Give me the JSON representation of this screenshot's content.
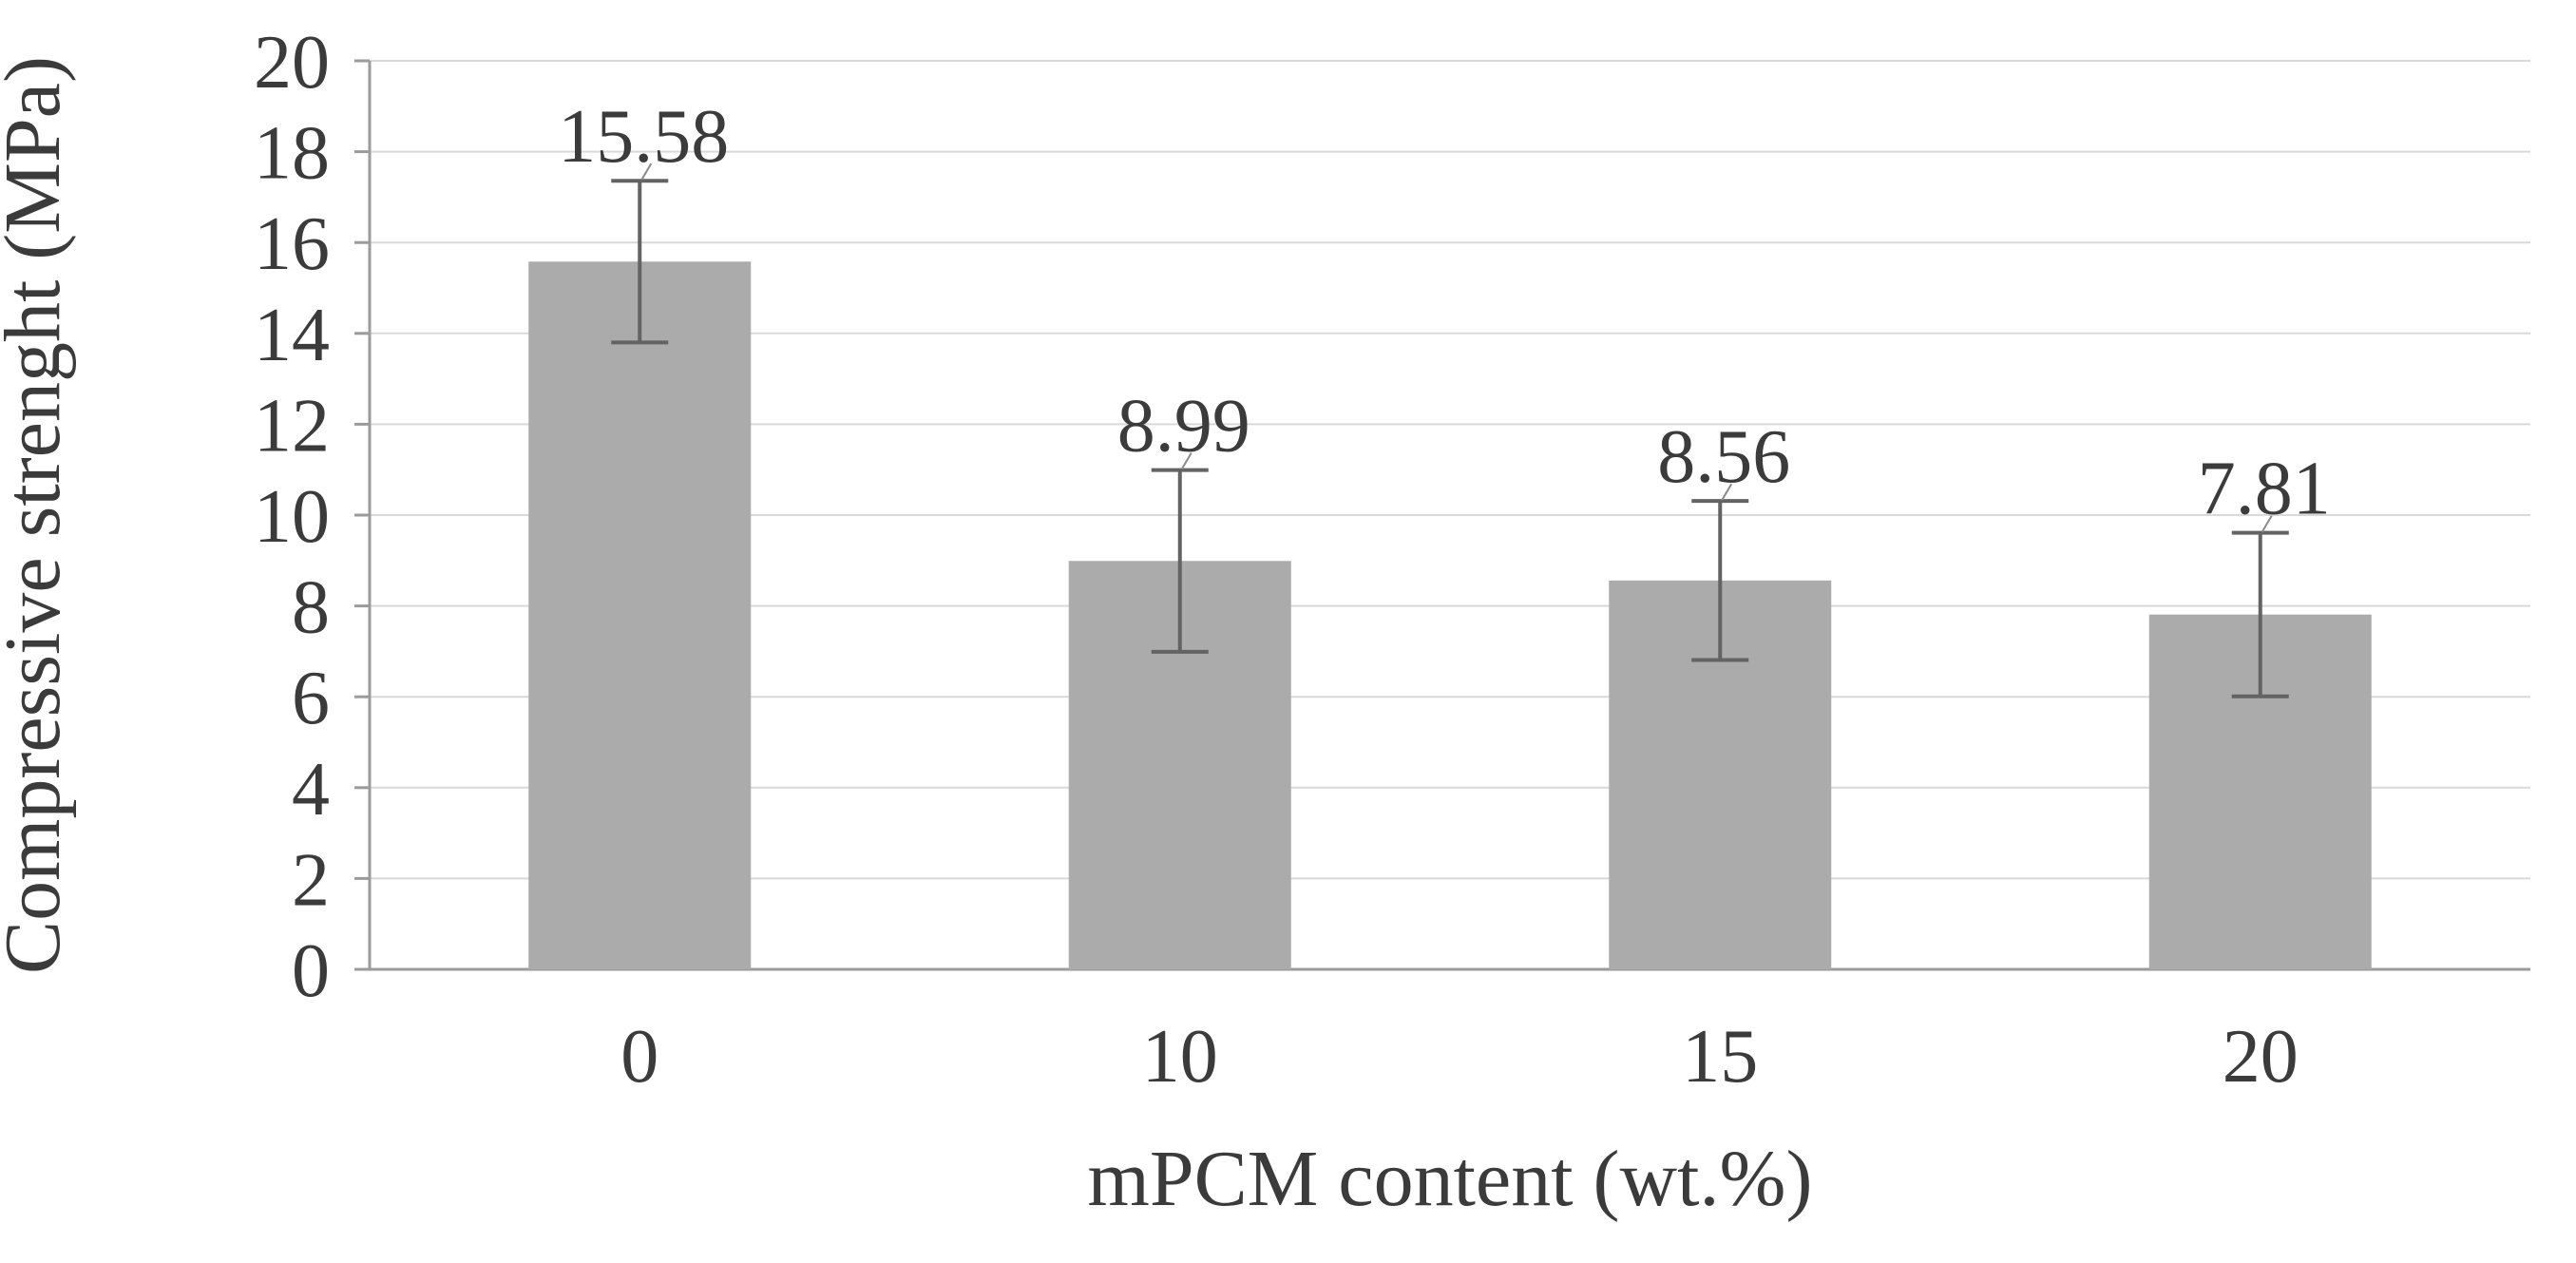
{
  "chart_data": {
    "type": "bar",
    "title": "",
    "xlabel": "mPCM content (wt.%)",
    "ylabel": "Compressive strenght (MPa)",
    "categories": [
      "0",
      "10",
      "15",
      "20"
    ],
    "values": [
      15.58,
      8.99,
      8.56,
      7.81
    ],
    "data_labels": [
      "15.58",
      "8.99",
      "8.56",
      "7.81"
    ],
    "error_bars": [
      1.78,
      2.0,
      1.75,
      1.8
    ],
    "ylim": [
      0,
      20
    ],
    "ytick_step": 2,
    "yticks": [
      "0",
      "2",
      "4",
      "6",
      "8",
      "10",
      "12",
      "14",
      "16",
      "18",
      "20"
    ],
    "grid": true,
    "legend": "none",
    "colors": {
      "bar": "#ababab",
      "gridline": "#d9d9d9",
      "axis": "#9b9b9b",
      "tick": "#9b9b9b",
      "error_bar": "#636363",
      "leader_line": "#8c8c8c",
      "text": "#3b3b3b",
      "background": "#ffffff"
    }
  }
}
